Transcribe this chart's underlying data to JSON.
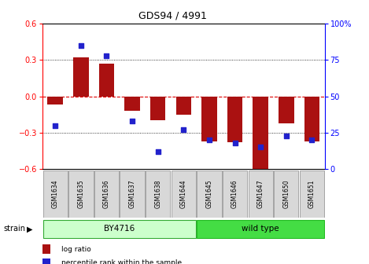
{
  "title": "GDS94 / 4991",
  "samples": [
    "GSM1634",
    "GSM1635",
    "GSM1636",
    "GSM1637",
    "GSM1638",
    "GSM1644",
    "GSM1645",
    "GSM1646",
    "GSM1647",
    "GSM1650",
    "GSM1651"
  ],
  "log_ratio": [
    -0.07,
    0.32,
    0.27,
    -0.12,
    -0.2,
    -0.15,
    -0.37,
    -0.38,
    -0.62,
    -0.22,
    -0.37
  ],
  "percentile_rank": [
    30,
    85,
    78,
    33,
    12,
    27,
    20,
    18,
    15,
    23,
    20
  ],
  "ylim": [
    -0.6,
    0.6
  ],
  "y2lim": [
    0,
    100
  ],
  "yticks": [
    -0.6,
    -0.3,
    0,
    0.3,
    0.6
  ],
  "y2ticks": [
    0,
    25,
    50,
    75,
    100
  ],
  "bar_color": "#aa1111",
  "dot_color": "#2222cc",
  "zero_line_color": "#dd0000",
  "grid_color": "#000000",
  "by4716_n": 6,
  "wildtype_n": 5,
  "by4716_color": "#ccffcc",
  "wildtype_color": "#44dd44",
  "strain_label": "strain",
  "by4716_label": "BY4716",
  "wildtype_label": "wild type",
  "legend_log_ratio": "log ratio",
  "legend_percentile": "percentile rank within the sample",
  "title_fontsize": 9,
  "tick_fontsize": 7,
  "bar_width": 0.6
}
